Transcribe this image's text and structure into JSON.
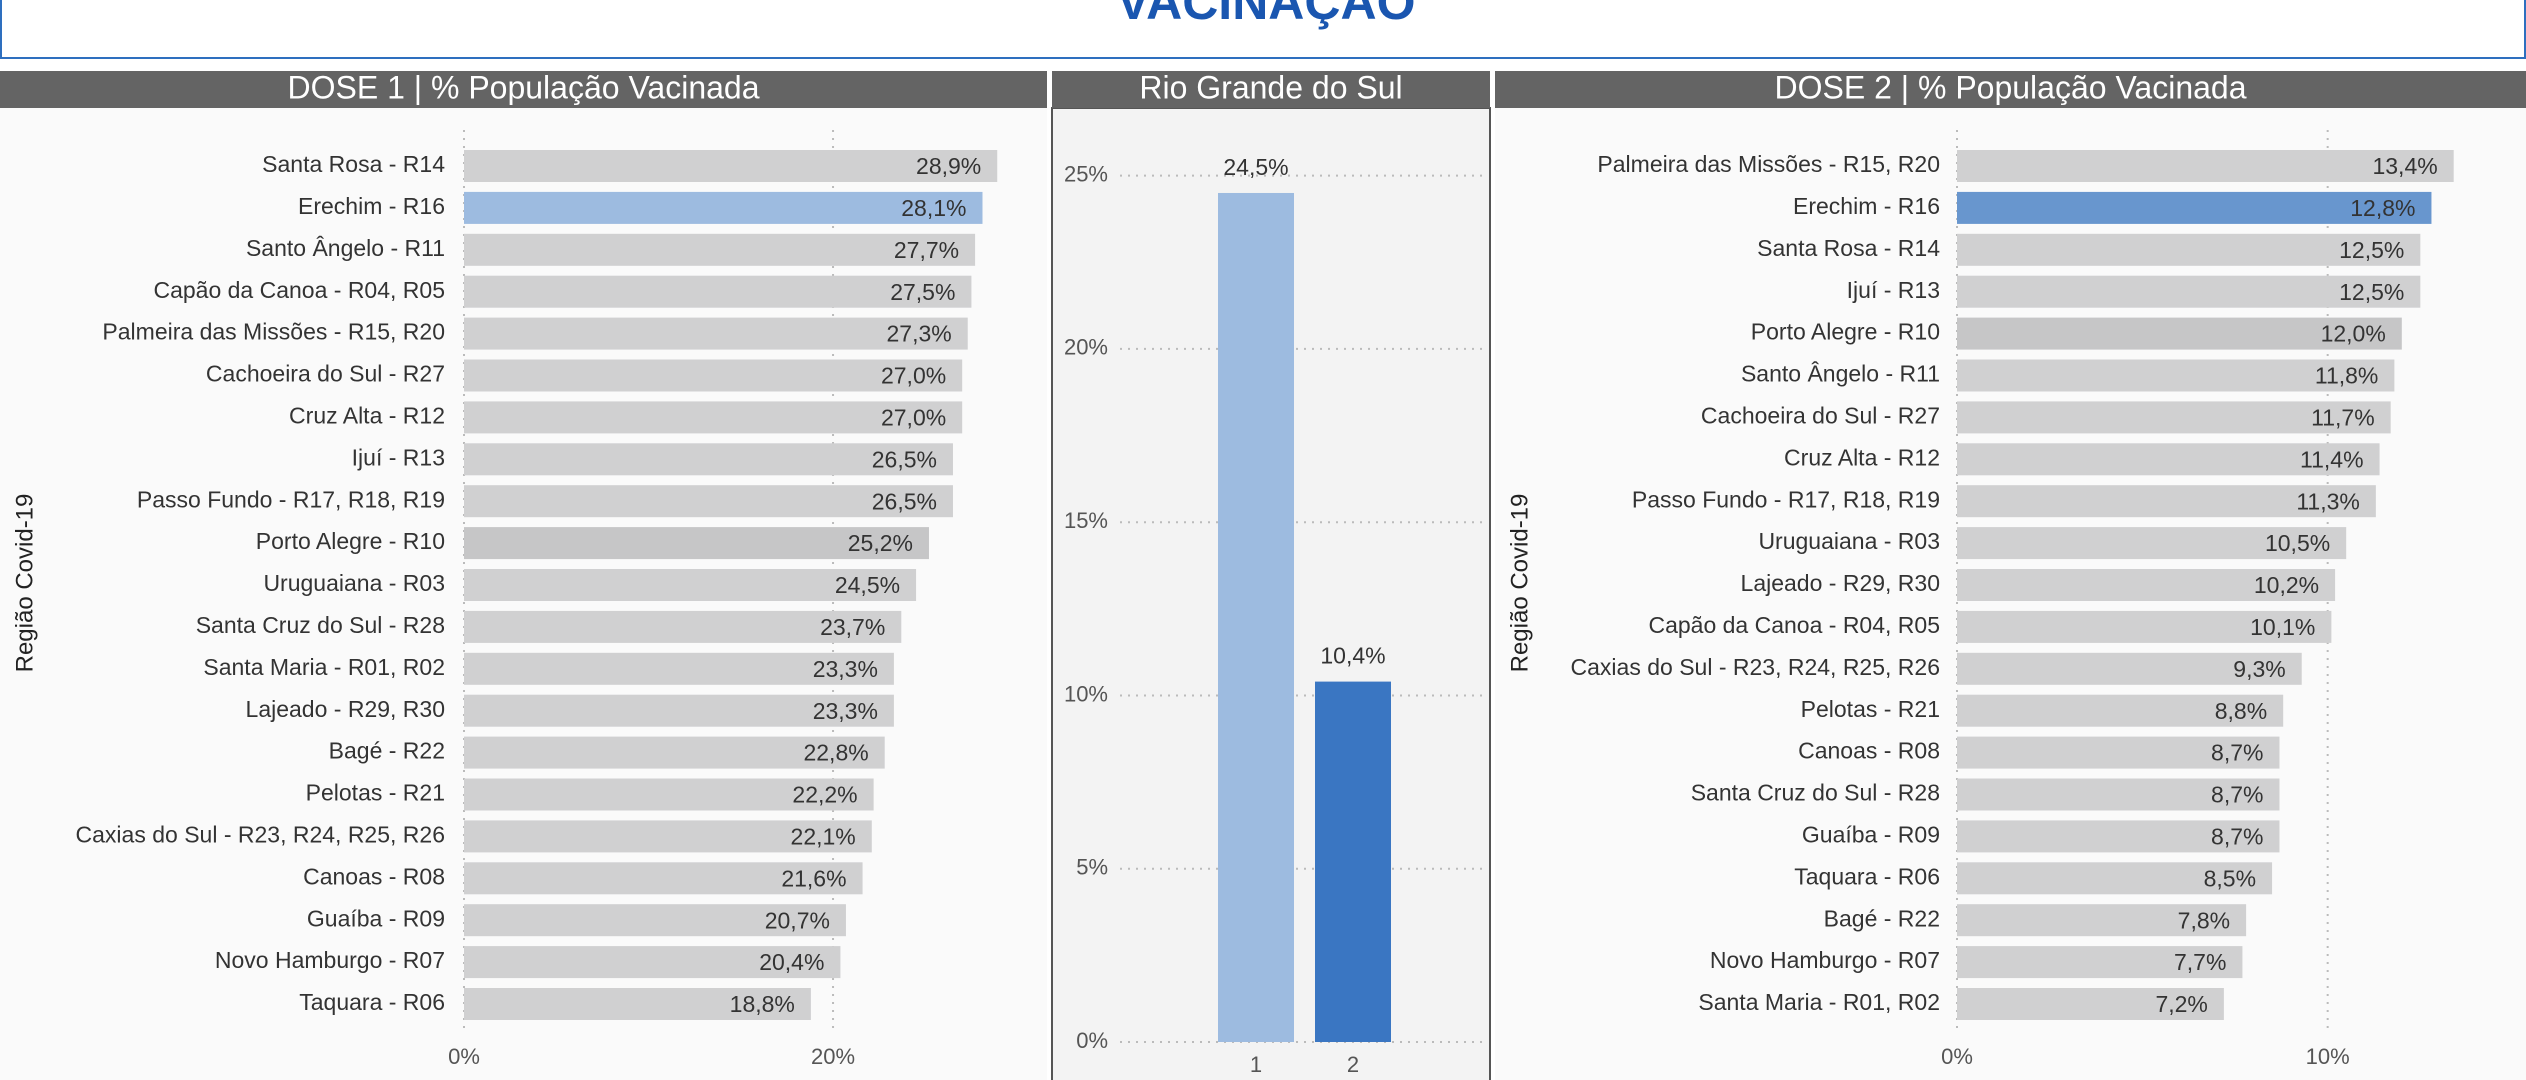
{
  "header": {
    "title": "VACINAÇÃO"
  },
  "chart_data": [
    {
      "type": "barh",
      "title": "DOSE 1 | % População Vacinada",
      "y_label": "Região Covid-19",
      "categories": [
        "Santa Rosa - R14",
        "Erechim - R16",
        "Santo Ângelo - R11",
        "Capão da Canoa - R04, R05",
        "Palmeira das Missões - R15, R20",
        "Cachoeira do Sul - R27",
        "Cruz Alta - R12",
        "Ijuí - R13",
        "Passo Fundo - R17, R18, R19",
        "Porto Alegre - R10",
        "Uruguaiana - R03",
        "Santa Cruz do Sul - R28",
        "Santa Maria - R01, R02",
        "Lajeado - R29, R30",
        "Bagé - R22",
        "Pelotas - R21",
        "Caxias do Sul - R23, R24, R25, R26",
        "Canoas - R08",
        "Guaíba - R09",
        "Novo Hamburgo - R07",
        "Taquara - R06"
      ],
      "values": [
        28.9,
        28.1,
        27.7,
        27.5,
        27.3,
        27.0,
        27.0,
        26.5,
        26.5,
        25.2,
        24.5,
        23.7,
        23.3,
        23.3,
        22.8,
        22.2,
        22.1,
        21.6,
        20.7,
        20.4,
        18.8
      ],
      "value_labels": [
        "28,9%",
        "28,1%",
        "27,7%",
        "27,5%",
        "27,3%",
        "27,0%",
        "27,0%",
        "26,5%",
        "26,5%",
        "25,2%",
        "24,5%",
        "23,7%",
        "23,3%",
        "23,3%",
        "22,8%",
        "22,2%",
        "22,1%",
        "21,6%",
        "20,7%",
        "20,4%",
        "18,8%"
      ],
      "colors": [
        "#d0d0d1",
        "#9dbbe0",
        "#d0d0d1",
        "#d0d0d1",
        "#d0d0d1",
        "#d0d0d1",
        "#d0d0d1",
        "#d0d0d1",
        "#d0d0d1",
        "#c6c6c7",
        "#d0d0d1",
        "#d0d0d1",
        "#d0d0d1",
        "#d0d0d1",
        "#d0d0d1",
        "#d0d0d1",
        "#d0d0d1",
        "#d0d0d1",
        "#d0d0d1",
        "#d0d0d1",
        "#d0d0d1"
      ],
      "xlim": [
        0,
        31
      ],
      "xticks": [
        {
          "value": 0,
          "label": "0%"
        },
        {
          "value": 20,
          "label": "20%"
        }
      ],
      "grid": true
    },
    {
      "type": "bar",
      "title": "Rio Grande do Sul",
      "categories": [
        "1",
        "2"
      ],
      "values": [
        24.5,
        10.4
      ],
      "value_labels": [
        "24,5%",
        "10,4%"
      ],
      "colors": [
        "#9dbbe0",
        "#3a76c2"
      ],
      "ylim": [
        0,
        26
      ],
      "yticks": [
        {
          "value": 0,
          "label": "0%"
        },
        {
          "value": 5,
          "label": "5%"
        },
        {
          "value": 10,
          "label": "10%"
        },
        {
          "value": 15,
          "label": "15%"
        },
        {
          "value": 20,
          "label": "20%"
        },
        {
          "value": 25,
          "label": "25%"
        }
      ],
      "grid": true
    },
    {
      "type": "barh",
      "title": "DOSE 2 | % População Vacinada",
      "y_label": "Região Covid-19",
      "categories": [
        "Palmeira das Missões - R15, R20",
        "Erechim - R16",
        "Santa Rosa - R14",
        "Ijuí - R13",
        "Porto Alegre - R10",
        "Santo Ângelo - R11",
        "Cachoeira do Sul - R27",
        "Cruz Alta - R12",
        "Passo Fundo - R17, R18, R19",
        "Uruguaiana - R03",
        "Lajeado - R29, R30",
        "Capão da Canoa - R04, R05",
        "Caxias do Sul - R23, R24, R25, R26",
        "Pelotas - R21",
        "Canoas - R08",
        "Santa Cruz do Sul - R28",
        "Guaíba - R09",
        "Taquara - R06",
        "Bagé - R22",
        "Novo Hamburgo - R07",
        "Santa Maria - R01, R02"
      ],
      "values": [
        13.4,
        12.8,
        12.5,
        12.5,
        12.0,
        11.8,
        11.7,
        11.4,
        11.3,
        10.5,
        10.2,
        10.1,
        9.3,
        8.8,
        8.7,
        8.7,
        8.7,
        8.5,
        7.8,
        7.7,
        7.2
      ],
      "value_labels": [
        "13,4%",
        "12,8%",
        "12,5%",
        "12,5%",
        "12,0%",
        "11,8%",
        "11,7%",
        "11,4%",
        "11,3%",
        "10,5%",
        "10,2%",
        "10,1%",
        "9,3%",
        "8,8%",
        "8,7%",
        "8,7%",
        "8,7%",
        "8,5%",
        "7,8%",
        "7,7%",
        "7,2%"
      ],
      "colors": [
        "#d0d0d1",
        "#6896ce",
        "#d0d0d1",
        "#d0d0d1",
        "#c6c6c7",
        "#d0d0d1",
        "#d0d0d1",
        "#d0d0d1",
        "#d0d0d1",
        "#d0d0d1",
        "#d0d0d1",
        "#d0d0d1",
        "#d0d0d1",
        "#d0d0d1",
        "#d0d0d1",
        "#d0d0d1",
        "#d0d0d1",
        "#d0d0d1",
        "#d0d0d1",
        "#d0d0d1",
        "#d0d0d1"
      ],
      "xlim": [
        0,
        15
      ],
      "xticks": [
        {
          "value": 0,
          "label": "0%"
        },
        {
          "value": 10,
          "label": "10%"
        }
      ],
      "grid": true
    }
  ]
}
